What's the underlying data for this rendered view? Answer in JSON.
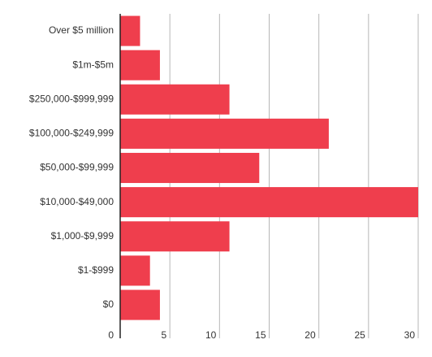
{
  "chart_data": {
    "type": "bar",
    "orientation": "horizontal",
    "categories": [
      "Over $5 million",
      "$1m-$5m",
      "$250,000-$999,999",
      "$100,000-$249,999",
      "$50,000-$99,999",
      "$10,000-$49,000",
      "$1,000-$9,999",
      "$1-$999",
      "$0"
    ],
    "values": [
      2,
      4,
      11,
      21,
      14,
      30,
      11,
      3,
      4
    ],
    "x_ticks": [
      "0",
      "5",
      "10",
      "15",
      "20",
      "25",
      "30"
    ],
    "xlim": [
      0,
      30
    ],
    "title": "",
    "xlabel": "",
    "ylabel": "",
    "grid": true,
    "bar_color": "#ef3e4d",
    "grid_color": "#b7b7b7",
    "axis_color": "#222222",
    "label_color": "#333333"
  }
}
